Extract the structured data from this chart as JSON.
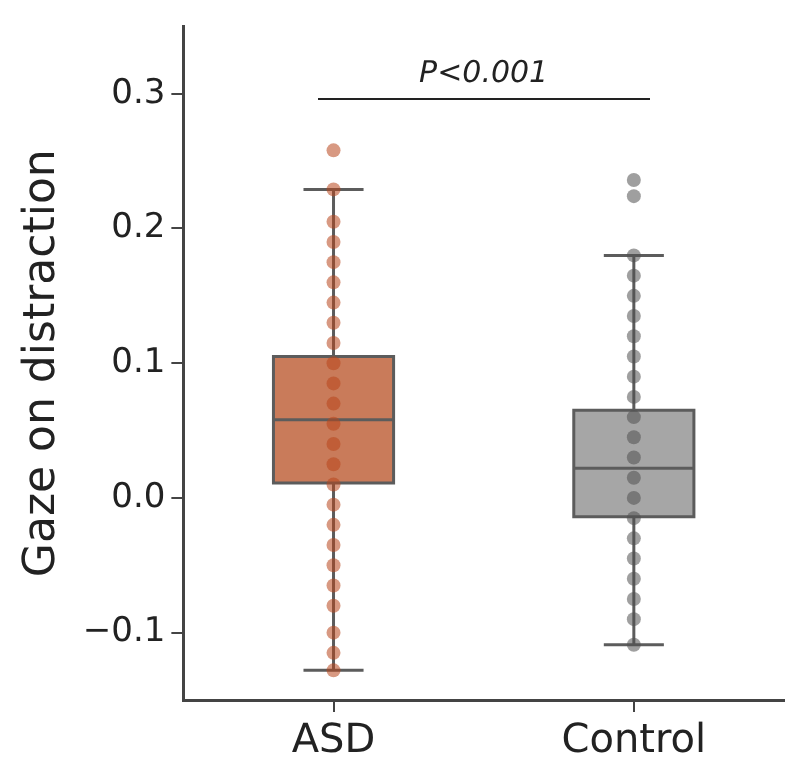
{
  "chart_data": {
    "type": "box",
    "ylabel": "Gaze on distraction",
    "categories": [
      "ASD",
      "Control"
    ],
    "colors": [
      "#c97b5a",
      "#a6a6a6"
    ],
    "boxes": [
      {
        "low": -0.128,
        "q1": 0.011,
        "median": 0.058,
        "q3": 0.105,
        "high": 0.229
      },
      {
        "low": -0.109,
        "q1": -0.014,
        "median": 0.022,
        "q3": 0.065,
        "high": 0.18
      }
    ],
    "ylim": [
      -0.15,
      0.35
    ],
    "yticks": [
      {
        "value": -0.1,
        "label": "−0.1"
      },
      {
        "value": 0,
        "label": "0.0"
      },
      0.1,
      0.2,
      0.3
    ],
    "grid": false,
    "legend": false,
    "marker": "circle",
    "annotations": [
      "P<0.001"
    ],
    "series": [
      {
        "type": "scatter",
        "color": "#b8461c",
        "x": [
          "ASD",
          "ASD",
          "ASD",
          "ASD",
          "ASD",
          "ASD",
          "ASD",
          "ASD",
          "ASD",
          "ASD",
          "ASD",
          "ASD",
          "ASD",
          "ASD",
          "ASD",
          "ASD",
          "ASD",
          "ASD",
          "ASD",
          "ASD",
          "ASD",
          "ASD",
          "ASD",
          "ASD",
          "ASD"
        ],
        "values": [
          0.258,
          0.229,
          0.205,
          0.19,
          0.175,
          0.16,
          0.145,
          0.13,
          0.115,
          0.1,
          0.085,
          0.07,
          0.055,
          0.04,
          0.025,
          0.01,
          -0.005,
          -0.02,
          -0.035,
          -0.05,
          -0.065,
          -0.08,
          -0.1,
          -0.115,
          -0.128
        ]
      },
      {
        "type": "scatter",
        "color": "#505050",
        "x": [
          "Control",
          "Control",
          "Control",
          "Control",
          "Control",
          "Control",
          "Control",
          "Control",
          "Control",
          "Control",
          "Control",
          "Control",
          "Control",
          "Control",
          "Control",
          "Control",
          "Control",
          "Control",
          "Control",
          "Control",
          "Control",
          "Control"
        ],
        "values": [
          0.236,
          0.224,
          0.18,
          0.165,
          0.15,
          0.135,
          0.12,
          0.105,
          0.09,
          0.075,
          0.06,
          0.045,
          0.03,
          0.015,
          0.0,
          -0.015,
          -0.03,
          -0.045,
          -0.06,
          -0.075,
          -0.09,
          -0.109
        ]
      }
    ]
  }
}
